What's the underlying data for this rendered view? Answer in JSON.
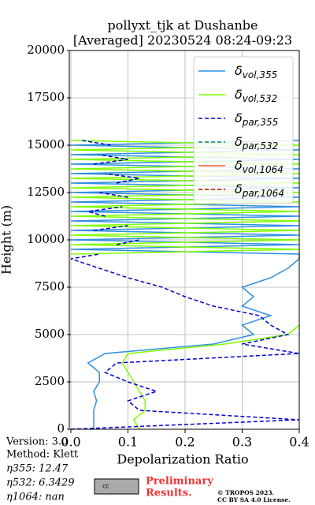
{
  "chart_data": {
    "type": "profile",
    "title": "pollyxt_tjk at Dushanbe",
    "subtitle": "[Averaged] 20230524 08:24-09:23",
    "xlabel": "Depolarization Ratio",
    "ylabel": "Height (m)",
    "xlim": [
      0,
      0.4
    ],
    "ylim": [
      0,
      20000
    ],
    "xticks": [
      {
        "value": 0,
        "label": "0.0"
      },
      0.1,
      0.2,
      0.3,
      0.4
    ],
    "yticks": [
      0,
      2500,
      5000,
      7500,
      10000,
      12500,
      15000,
      17500,
      20000
    ],
    "grid": true,
    "legend": "upper right",
    "heights": [
      0,
      500,
      1000,
      1500,
      2000,
      2500,
      3000,
      3500,
      4000,
      4500,
      5000,
      5500,
      6000,
      6500,
      7000,
      7500,
      8000,
      8500,
      9000,
      9250,
      9500,
      9750,
      10000,
      10250,
      10500,
      10750,
      11000,
      11250,
      11500,
      11750,
      12000,
      12250,
      12500,
      12750,
      13000,
      13250,
      13500,
      13750,
      14000,
      14250,
      14500,
      14750,
      15000,
      15250
    ],
    "series": [
      {
        "name": "δvol,355",
        "color": "#2f90e0",
        "dashed": false,
        "values": [
          0.04,
          0.04,
          0.04,
          0.045,
          0.04,
          0.05,
          0.05,
          0.03,
          0.06,
          0.25,
          0.32,
          0.3,
          0.35,
          0.3,
          0.32,
          0.3,
          0.35,
          0.38,
          0.4,
          0.4,
          0,
          0.4,
          0,
          0.4,
          0,
          0.4,
          0,
          0.4,
          0,
          0.4,
          0,
          0.4,
          0,
          0.4,
          0,
          0.4,
          0,
          0.4,
          0,
          0.4,
          0,
          0.4,
          0,
          0.4
        ]
      },
      {
        "name": "δvol,532",
        "color": "#7fff00",
        "dashed": false,
        "values": [
          0.12,
          0.11,
          0.13,
          0.13,
          0.12,
          0.11,
          0.1,
          0.09,
          0.1,
          0.27,
          0.38,
          0.4,
          null,
          null,
          null,
          null,
          null,
          null,
          null,
          0,
          0.4,
          0,
          0.4,
          0,
          0.4,
          0,
          0.4,
          0,
          0.4,
          0,
          0.4,
          0,
          0.4,
          0,
          0.4,
          0,
          0.4,
          0,
          0.4,
          0,
          0.4,
          0,
          0.4,
          0
        ]
      },
      {
        "name": "δpar,355",
        "color": "#0000cd",
        "dashed": true,
        "values": [
          0.0,
          0.4,
          0.12,
          0.1,
          0.15,
          0.1,
          0.06,
          0.08,
          0.4,
          0.3,
          0.38,
          0.35,
          0.33,
          0.25,
          0.2,
          0.16,
          0.1,
          0.05,
          0.0,
          0.05,
          null,
          0.08,
          0.12,
          null,
          0.04,
          0.1,
          null,
          0.06,
          0.03,
          0.09,
          null,
          0.1,
          0.05,
          null,
          0.08,
          0.12,
          0.06,
          null,
          0.04,
          0.1,
          0.05,
          null,
          0.07,
          0.02
        ]
      },
      {
        "name": "δpar,532",
        "color": "#008080",
        "dashed": true
      },
      {
        "name": "δvol,1064",
        "color": "#ff5a2a",
        "dashed": false
      },
      {
        "name": "δpar,1064",
        "color": "#cc0000",
        "dashed": true
      }
    ]
  },
  "info": {
    "version": "Version: 3.0",
    "method": "Method: Klett",
    "eta355": "η355:  12.47",
    "eta532": "η532: 6.3429",
    "eta1064": "η1064:    nan"
  },
  "footer": {
    "cc": "cc",
    "preliminary1": "Preliminary",
    "preliminary2": "Results.",
    "tropos1": "© TROPOS 2023.",
    "tropos2": "CC BY SA 4.0 License."
  }
}
